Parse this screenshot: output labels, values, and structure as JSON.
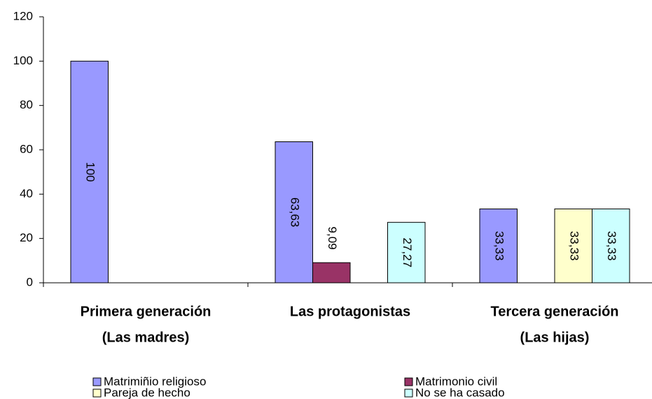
{
  "chart_data": {
    "type": "bar",
    "categories": [
      [
        "Primera generación",
        "(Las madres)"
      ],
      [
        "Las protagonistas"
      ],
      [
        "Tercera generación",
        "(Las hijas)"
      ]
    ],
    "series": [
      {
        "name": "Matrimiñio religioso",
        "color": "#9999ff",
        "values": [
          100,
          63.63,
          33.33
        ],
        "value_labels": [
          "100",
          "63,63",
          "33,33"
        ]
      },
      {
        "name": "Matrimonio civil",
        "color": "#993366",
        "values": [
          null,
          9.09,
          null
        ],
        "value_labels": [
          null,
          "9,09",
          null
        ]
      },
      {
        "name": "Pareja de hecho",
        "color": "#ffffcc",
        "values": [
          null,
          null,
          33.33
        ],
        "value_labels": [
          null,
          null,
          "33,33"
        ]
      },
      {
        "name": "No se ha casado",
        "color": "#ccffff",
        "values": [
          null,
          27.27,
          33.33
        ],
        "value_labels": [
          null,
          "27,27",
          "33,33"
        ]
      }
    ],
    "ylim": [
      0,
      120
    ],
    "yticks": [
      0,
      20,
      40,
      60,
      80,
      100,
      120
    ],
    "grid": false,
    "legend": "bottom"
  }
}
